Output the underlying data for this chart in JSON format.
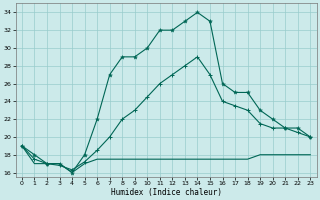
{
  "xlabel": "Humidex (Indice chaleur)",
  "x": [
    0,
    1,
    2,
    3,
    4,
    5,
    6,
    7,
    8,
    9,
    10,
    11,
    12,
    13,
    14,
    15,
    16,
    17,
    18,
    19,
    20,
    21,
    22,
    23
  ],
  "line_max": [
    19,
    18,
    17,
    17,
    16,
    18,
    22,
    27,
    29,
    29,
    30,
    32,
    32,
    33,
    34,
    33,
    26,
    25,
    25,
    23,
    22,
    21,
    21,
    20
  ],
  "line_mean": [
    19,
    17.5,
    17,
    16.8,
    16.3,
    17.2,
    18.5,
    20,
    22,
    23,
    24.5,
    26,
    27,
    28,
    29,
    27,
    24,
    23.5,
    23,
    21.5,
    21,
    21,
    20.5,
    20
  ],
  "line_min": [
    19,
    17,
    17,
    17,
    16,
    17,
    17.5,
    17.5,
    17.5,
    17.5,
    17.5,
    17.5,
    17.5,
    17.5,
    17.5,
    17.5,
    17.5,
    17.5,
    17.5,
    18,
    18,
    18,
    18,
    18
  ],
  "bg_color": "#cceaea",
  "line_color": "#006655",
  "grid_color": "#99cccc",
  "ylim": [
    15.5,
    35
  ],
  "yticks": [
    16,
    18,
    20,
    22,
    24,
    26,
    28,
    30,
    32,
    34
  ],
  "xticks": [
    0,
    1,
    2,
    3,
    4,
    5,
    6,
    7,
    8,
    9,
    10,
    11,
    12,
    13,
    14,
    15,
    16,
    17,
    18,
    19,
    20,
    21,
    22,
    23
  ]
}
